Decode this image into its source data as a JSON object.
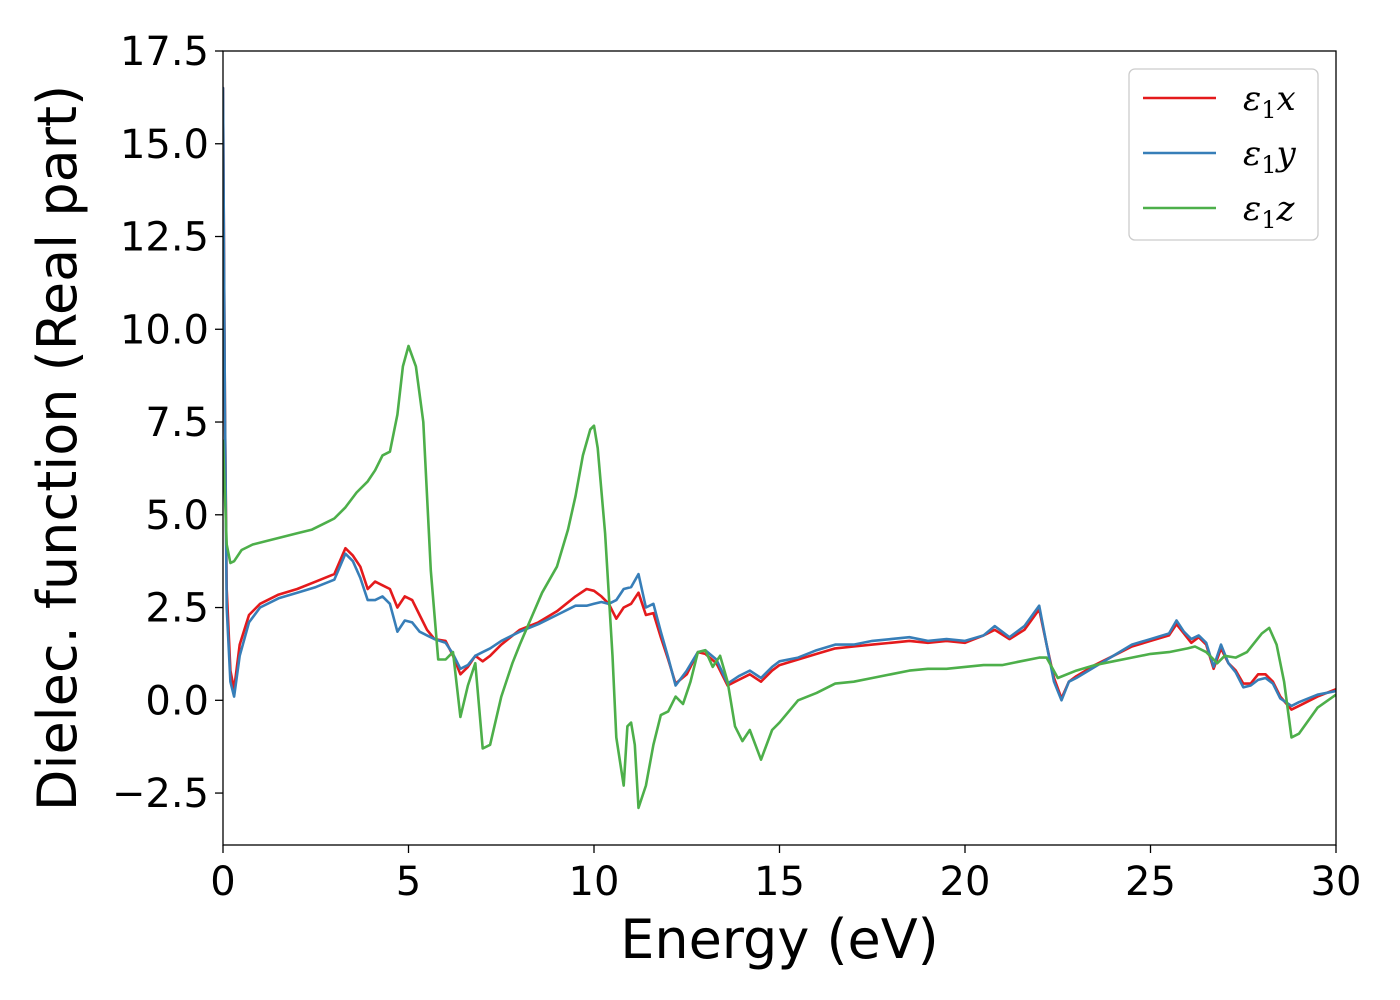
{
  "chart_data": {
    "type": "line",
    "title": "",
    "xlabel": "Energy (eV)",
    "ylabel": "Dielec. function (Real part)",
    "xlim": [
      0,
      30
    ],
    "ylim": [
      -3.9,
      17.5
    ],
    "xticks": [
      0,
      5,
      10,
      15,
      20,
      25,
      30
    ],
    "xtick_labels": [
      "0",
      "5",
      "10",
      "15",
      "20",
      "25",
      "30"
    ],
    "yticks": [
      -2.5,
      0.0,
      2.5,
      5.0,
      7.5,
      10.0,
      12.5,
      15.0,
      17.5
    ],
    "ytick_labels": [
      "−2.5",
      "0.0",
      "2.5",
      "5.0",
      "7.5",
      "10.0",
      "12.5",
      "15.0",
      "17.5"
    ],
    "grid": false,
    "legend": "top-right",
    "series": [
      {
        "name": "ε₁x",
        "legend_main": "ε",
        "legend_sub": "1",
        "legend_var": "x",
        "color": "#e41a1c",
        "x": [
          0,
          0.05,
          0.1,
          0.2,
          0.3,
          0.45,
          0.7,
          1.0,
          1.5,
          2.0,
          2.5,
          3.0,
          3.3,
          3.5,
          3.7,
          3.9,
          4.1,
          4.3,
          4.5,
          4.7,
          4.9,
          5.1,
          5.3,
          5.5,
          5.7,
          6.0,
          6.2,
          6.4,
          6.6,
          6.8,
          7.0,
          7.2,
          7.5,
          8.0,
          8.5,
          9.0,
          9.5,
          9.8,
          10.0,
          10.2,
          10.4,
          10.6,
          10.8,
          11.0,
          11.2,
          11.4,
          11.6,
          11.8,
          12.0,
          12.2,
          12.5,
          12.8,
          13.0,
          13.3,
          13.6,
          13.9,
          14.2,
          14.5,
          14.8,
          15.0,
          15.5,
          16.0,
          16.5,
          17.0,
          17.5,
          18.0,
          18.5,
          19.0,
          19.5,
          20.0,
          20.5,
          20.8,
          21.2,
          21.6,
          22.0,
          22.2,
          22.4,
          22.6,
          22.8,
          23.0,
          23.5,
          24.0,
          24.5,
          25.0,
          25.5,
          25.7,
          25.9,
          26.1,
          26.3,
          26.5,
          26.7,
          26.9,
          27.1,
          27.3,
          27.5,
          27.7,
          27.9,
          28.1,
          28.3,
          28.5,
          28.8,
          29.0,
          29.5,
          30.0
        ],
        "values": [
          16.5,
          8.0,
          3.0,
          0.8,
          0.3,
          1.5,
          2.3,
          2.6,
          2.85,
          3.0,
          3.2,
          3.4,
          4.1,
          3.9,
          3.6,
          3.0,
          3.2,
          3.1,
          3.0,
          2.5,
          2.8,
          2.7,
          2.3,
          1.9,
          1.65,
          1.6,
          1.2,
          0.7,
          0.9,
          1.2,
          1.05,
          1.2,
          1.5,
          1.9,
          2.1,
          2.4,
          2.8,
          3.0,
          2.95,
          2.8,
          2.6,
          2.2,
          2.5,
          2.6,
          2.9,
          2.3,
          2.35,
          1.7,
          1.1,
          0.45,
          0.7,
          1.3,
          1.25,
          1.0,
          0.4,
          0.55,
          0.7,
          0.5,
          0.8,
          0.95,
          1.1,
          1.25,
          1.4,
          1.45,
          1.5,
          1.55,
          1.6,
          1.55,
          1.6,
          1.55,
          1.75,
          1.9,
          1.65,
          1.9,
          2.45,
          1.5,
          0.6,
          0.05,
          0.5,
          0.65,
          0.95,
          1.2,
          1.45,
          1.6,
          1.75,
          2.05,
          1.8,
          1.55,
          1.7,
          1.5,
          0.85,
          1.4,
          1.0,
          0.8,
          0.45,
          0.45,
          0.7,
          0.7,
          0.5,
          0.1,
          -0.25,
          -0.15,
          0.1,
          0.3
        ]
      },
      {
        "name": "ε₁y",
        "legend_main": "ε",
        "legend_sub": "1",
        "legend_var": "y",
        "color": "#377eb8",
        "x": [
          0,
          0.05,
          0.1,
          0.2,
          0.3,
          0.45,
          0.7,
          1.0,
          1.5,
          2.0,
          2.5,
          3.0,
          3.3,
          3.5,
          3.7,
          3.9,
          4.1,
          4.3,
          4.5,
          4.7,
          4.9,
          5.1,
          5.3,
          5.5,
          5.7,
          6.0,
          6.2,
          6.4,
          6.6,
          6.8,
          7.0,
          7.2,
          7.5,
          8.0,
          8.5,
          9.0,
          9.5,
          9.8,
          10.0,
          10.2,
          10.4,
          10.6,
          10.8,
          11.0,
          11.2,
          11.4,
          11.6,
          11.8,
          12.0,
          12.2,
          12.5,
          12.8,
          13.0,
          13.3,
          13.6,
          13.9,
          14.2,
          14.5,
          14.8,
          15.0,
          15.5,
          16.0,
          16.5,
          17.0,
          17.5,
          18.0,
          18.5,
          19.0,
          19.5,
          20.0,
          20.5,
          20.8,
          21.2,
          21.6,
          22.0,
          22.2,
          22.4,
          22.6,
          22.8,
          23.0,
          23.5,
          24.0,
          24.5,
          25.0,
          25.5,
          25.7,
          25.9,
          26.1,
          26.3,
          26.5,
          26.7,
          26.9,
          27.1,
          27.3,
          27.5,
          27.7,
          27.9,
          28.1,
          28.3,
          28.5,
          28.8,
          29.0,
          29.5,
          30.0
        ],
        "values": [
          16.5,
          8.0,
          2.5,
          0.5,
          0.1,
          1.2,
          2.1,
          2.5,
          2.75,
          2.9,
          3.05,
          3.25,
          3.95,
          3.75,
          3.3,
          2.7,
          2.7,
          2.8,
          2.6,
          1.85,
          2.15,
          2.1,
          1.85,
          1.75,
          1.65,
          1.55,
          1.25,
          0.85,
          0.95,
          1.2,
          1.3,
          1.4,
          1.6,
          1.85,
          2.05,
          2.3,
          2.55,
          2.55,
          2.6,
          2.65,
          2.6,
          2.7,
          3.0,
          3.05,
          3.4,
          2.5,
          2.6,
          1.85,
          1.15,
          0.4,
          0.8,
          1.3,
          1.35,
          1.1,
          0.45,
          0.65,
          0.8,
          0.6,
          0.9,
          1.05,
          1.15,
          1.35,
          1.5,
          1.5,
          1.6,
          1.65,
          1.7,
          1.6,
          1.65,
          1.6,
          1.75,
          2.0,
          1.7,
          2.0,
          2.55,
          1.5,
          0.5,
          0.0,
          0.5,
          0.6,
          0.9,
          1.2,
          1.5,
          1.65,
          1.8,
          2.15,
          1.85,
          1.65,
          1.75,
          1.55,
          0.9,
          1.5,
          1.0,
          0.75,
          0.35,
          0.4,
          0.55,
          0.6,
          0.45,
          0.05,
          -0.15,
          -0.05,
          0.15,
          0.25
        ]
      },
      {
        "name": "ε₁z",
        "legend_main": "ε",
        "legend_sub": "1",
        "legend_var": "z",
        "color": "#4daf4a",
        "x": [
          0,
          0.1,
          0.2,
          0.3,
          0.5,
          0.8,
          1.2,
          1.6,
          2.0,
          2.4,
          2.8,
          3.0,
          3.3,
          3.6,
          3.9,
          4.1,
          4.3,
          4.5,
          4.7,
          4.85,
          5.0,
          5.2,
          5.4,
          5.6,
          5.8,
          6.0,
          6.2,
          6.4,
          6.6,
          6.8,
          7.0,
          7.2,
          7.5,
          7.8,
          8.0,
          8.3,
          8.6,
          9.0,
          9.3,
          9.5,
          9.7,
          9.9,
          10.0,
          10.1,
          10.3,
          10.5,
          10.6,
          10.8,
          10.9,
          11.0,
          11.1,
          11.2,
          11.4,
          11.6,
          11.8,
          12.0,
          12.2,
          12.4,
          12.6,
          12.8,
          13.0,
          13.2,
          13.4,
          13.6,
          13.8,
          14.0,
          14.2,
          14.5,
          14.8,
          15.0,
          15.5,
          16.0,
          16.5,
          17.0,
          17.5,
          18.0,
          18.5,
          19.0,
          19.5,
          20.0,
          20.5,
          21.0,
          21.5,
          22.0,
          22.2,
          22.5,
          23.0,
          23.5,
          24.0,
          24.5,
          25.0,
          25.5,
          26.0,
          26.2,
          26.5,
          26.8,
          27.0,
          27.3,
          27.6,
          28.0,
          28.2,
          28.4,
          28.6,
          28.8,
          29.0,
          29.5,
          30.0
        ],
        "values": [
          7.0,
          4.2,
          3.7,
          3.75,
          4.05,
          4.2,
          4.3,
          4.4,
          4.5,
          4.6,
          4.8,
          4.9,
          5.2,
          5.6,
          5.9,
          6.2,
          6.6,
          6.7,
          7.7,
          9.0,
          9.55,
          9.0,
          7.5,
          3.5,
          1.1,
          1.1,
          1.3,
          -0.45,
          0.4,
          1.0,
          -1.3,
          -1.2,
          0.1,
          1.0,
          1.5,
          2.2,
          2.9,
          3.6,
          4.6,
          5.5,
          6.6,
          7.3,
          7.4,
          6.8,
          4.5,
          1.2,
          -1.0,
          -2.3,
          -0.7,
          -0.6,
          -1.2,
          -2.9,
          -2.3,
          -1.2,
          -0.4,
          -0.3,
          0.1,
          -0.1,
          0.5,
          1.3,
          1.35,
          0.9,
          1.2,
          0.5,
          -0.7,
          -1.1,
          -0.8,
          -1.6,
          -0.8,
          -0.6,
          0.0,
          0.2,
          0.45,
          0.5,
          0.6,
          0.7,
          0.8,
          0.85,
          0.85,
          0.9,
          0.95,
          0.95,
          1.05,
          1.15,
          1.15,
          0.6,
          0.8,
          0.95,
          1.05,
          1.15,
          1.25,
          1.3,
          1.4,
          1.45,
          1.3,
          1.0,
          1.2,
          1.15,
          1.3,
          1.8,
          1.95,
          1.5,
          0.5,
          -1.0,
          -0.9,
          -0.2,
          0.15
        ]
      }
    ]
  }
}
